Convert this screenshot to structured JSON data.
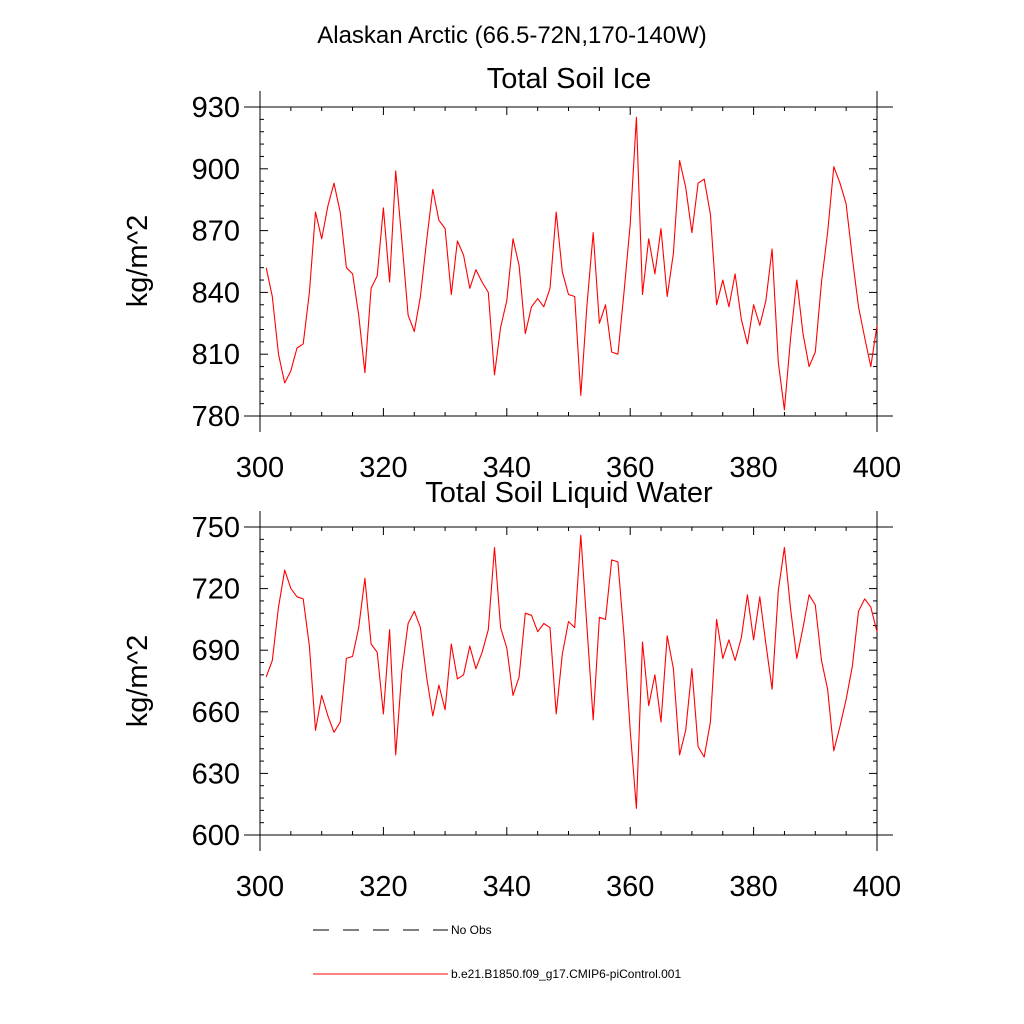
{
  "figure": {
    "title": "Alaskan Arctic (66.5-72N,170-140W)"
  },
  "chart_data": [
    {
      "type": "line",
      "title": "Total Soil Ice",
      "ylabel": "kg/m^2",
      "xlabel": "",
      "xlim": [
        300,
        400
      ],
      "ylim": [
        780,
        930
      ],
      "xticks": [
        "300",
        "320",
        "340",
        "360",
        "380",
        "400"
      ],
      "yticks": [
        "780",
        "810",
        "840",
        "870",
        "900",
        "930"
      ],
      "x": [
        301,
        302,
        303,
        304,
        305,
        306,
        307,
        308,
        309,
        310,
        311,
        312,
        313,
        314,
        315,
        316,
        317,
        318,
        319,
        320,
        321,
        322,
        323,
        324,
        325,
        326,
        327,
        328,
        329,
        330,
        331,
        332,
        333,
        334,
        335,
        336,
        337,
        338,
        339,
        340,
        341,
        342,
        343,
        344,
        345,
        346,
        347,
        348,
        349,
        350,
        351,
        352,
        353,
        354,
        355,
        356,
        357,
        358,
        359,
        360,
        361,
        362,
        363,
        364,
        365,
        366,
        367,
        368,
        369,
        370,
        371,
        372,
        373,
        374,
        375,
        376,
        377,
        378,
        379,
        380,
        381,
        382,
        383,
        384,
        385,
        386,
        387,
        388,
        389,
        390,
        391,
        392,
        393,
        394,
        395,
        396,
        397,
        398,
        399,
        400
      ],
      "series": [
        {
          "color": "#ff0000",
          "values": [
            852,
            838,
            810,
            796,
            802,
            813,
            815,
            840,
            879,
            866,
            882,
            893,
            879,
            852,
            849,
            829,
            801,
            842,
            848,
            881,
            845,
            899,
            865,
            829,
            821,
            838,
            865,
            890,
            875,
            871,
            839,
            865,
            858,
            842,
            851,
            845,
            840,
            800,
            823,
            836,
            866,
            853,
            820,
            833,
            837,
            833,
            842,
            879,
            850,
            839,
            838,
            790,
            834,
            869,
            825,
            834,
            811,
            810,
            840,
            873,
            925,
            839,
            866,
            849,
            871,
            838,
            859,
            904,
            891,
            869,
            893,
            895,
            878,
            834,
            846,
            833,
            849,
            827,
            815,
            834,
            824,
            836,
            861,
            806,
            783,
            818,
            846,
            820,
            804,
            811,
            845,
            869,
            901,
            893,
            883,
            857,
            833,
            818,
            804,
            824
          ]
        }
      ]
    },
    {
      "type": "line",
      "title": "Total Soil Liquid Water",
      "ylabel": "kg/m^2",
      "xlabel": "",
      "xlim": [
        300,
        400
      ],
      "ylim": [
        600,
        750
      ],
      "xticks": [
        "300",
        "320",
        "340",
        "360",
        "380",
        "400"
      ],
      "yticks": [
        "600",
        "630",
        "660",
        "690",
        "720",
        "750"
      ],
      "x": [
        301,
        302,
        303,
        304,
        305,
        306,
        307,
        308,
        309,
        310,
        311,
        312,
        313,
        314,
        315,
        316,
        317,
        318,
        319,
        320,
        321,
        322,
        323,
        324,
        325,
        326,
        327,
        328,
        329,
        330,
        331,
        332,
        333,
        334,
        335,
        336,
        337,
        338,
        339,
        340,
        341,
        342,
        343,
        344,
        345,
        346,
        347,
        348,
        349,
        350,
        351,
        352,
        353,
        354,
        355,
        356,
        357,
        358,
        359,
        360,
        361,
        362,
        363,
        364,
        365,
        366,
        367,
        368,
        369,
        370,
        371,
        372,
        373,
        374,
        375,
        376,
        377,
        378,
        379,
        380,
        381,
        382,
        383,
        384,
        385,
        386,
        387,
        388,
        389,
        390,
        391,
        392,
        393,
        394,
        395,
        396,
        397,
        398,
        399,
        400
      ],
      "series": [
        {
          "color": "#ff0000",
          "values": [
            677,
            685,
            711,
            729,
            720,
            716,
            715,
            692,
            651,
            668,
            658,
            650,
            655,
            686,
            687,
            701,
            725,
            693,
            689,
            659,
            700,
            639,
            680,
            703,
            709,
            701,
            677,
            658,
            673,
            661,
            693,
            676,
            678,
            692,
            681,
            689,
            700,
            740,
            701,
            691,
            668,
            677,
            708,
            707,
            699,
            703,
            701,
            659,
            688,
            704,
            701,
            746,
            701,
            656,
            706,
            705,
            734,
            733,
            697,
            651,
            613,
            694,
            663,
            678,
            655,
            697,
            681,
            639,
            651,
            681,
            643,
            638,
            655,
            705,
            686,
            695,
            685,
            696,
            717,
            695,
            716,
            693,
            671,
            719,
            740,
            710,
            686,
            701,
            717,
            712,
            685,
            671,
            641,
            653,
            666,
            682,
            709,
            715,
            711,
            699
          ]
        }
      ]
    }
  ],
  "legend": {
    "items": [
      {
        "label": "No Obs",
        "color": "#000000",
        "style": "dashed"
      },
      {
        "label": "b.e21.B1850.f09_g17.CMIP6-piControl.001",
        "color": "#ff0000",
        "style": "solid"
      }
    ]
  }
}
